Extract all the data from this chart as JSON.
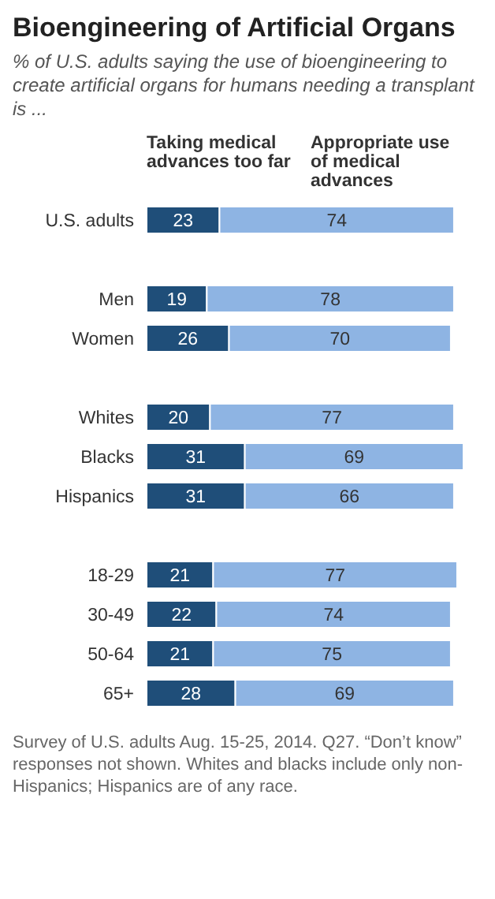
{
  "chart_data": {
    "type": "bar",
    "orientation": "horizontal",
    "stacked": true,
    "title": "Bioengineering of Artificial Organs",
    "subtitle": "% of U.S. adults saying the use of bioengineering to create artificial organs for humans needing a transplant is ...",
    "categories": [
      "U.S. adults",
      null,
      "Men",
      "Women",
      null,
      "Whites",
      "Blacks",
      "Hispanics",
      null,
      "18-29",
      "30-49",
      "50-64",
      "65+"
    ],
    "series": [
      {
        "name": "Taking medical advances too far",
        "color": "#1f4e79",
        "values": [
          23,
          null,
          19,
          26,
          null,
          20,
          31,
          31,
          null,
          21,
          22,
          21,
          28
        ]
      },
      {
        "name": "Appropriate use of medical advances",
        "color": "#8eb4e3",
        "values": [
          74,
          null,
          78,
          70,
          null,
          77,
          69,
          66,
          null,
          77,
          74,
          75,
          69
        ]
      }
    ],
    "data_labels": true,
    "annotations": [
      "Survey of U.S. adults Aug. 15-25, 2014. Q27. “Don’t know” responses not shown. Whites and blacks include only non-Hispanics; Hispanics are of any race."
    ]
  }
}
